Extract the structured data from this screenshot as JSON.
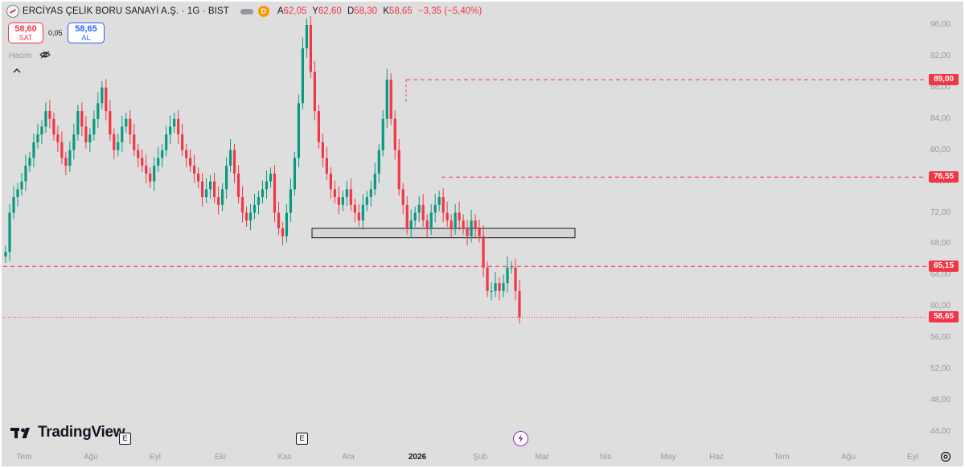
{
  "header": {
    "symbol_title": "ERCİYAS ÇELİK BORU SANAYİ A.Ş. · 1G · BIST",
    "badge_letter": "D",
    "ohlc": [
      {
        "label": "A",
        "value": "62,05"
      },
      {
        "label": "Y",
        "value": "62,60"
      },
      {
        "label": "D",
        "value": "58,30"
      },
      {
        "label": "K",
        "value": "58,65"
      }
    ],
    "change": "−3,35 (−5,40%)"
  },
  "trade": {
    "sell_price": "58,60",
    "sell_label": "SAT",
    "spread": "0,05",
    "buy_price": "58,65",
    "buy_label": "AL"
  },
  "indicator": {
    "volume_label": "Hacim"
  },
  "branding": {
    "logo_text": "TradingView"
  },
  "events": {
    "earnings_badge": "E"
  },
  "colors": {
    "up": "#089981",
    "down": "#f23645",
    "level_line": "#f23645",
    "zone_fill": "#d3d3d3",
    "zone_border": "#131722"
  },
  "icons": [
    "symbol-logo-icon",
    "eye-off-icon",
    "chevron-up-icon",
    "tradingview-logo-icon",
    "flash-icon",
    "settings-icon"
  ],
  "chart_data": {
    "type": "candlestick",
    "y_axis": {
      "ticks": [
        "96,00",
        "92,00",
        "88,00",
        "84,00",
        "80,00",
        "76,00",
        "72,00",
        "68,00",
        "64,00",
        "60,00",
        "56,00",
        "52,00",
        "48,00",
        "44,00"
      ],
      "range": [
        42.5,
        98.5
      ]
    },
    "x_axis": {
      "ticks": [
        "Tem",
        "Ağu",
        "Eyl",
        "Eki",
        "Kas",
        "Ara",
        "2026",
        "Şub",
        "Mar",
        "Nis",
        "May",
        "Haz",
        "Tem",
        "Ağu",
        "Eyl"
      ],
      "bold_tick": "2026"
    },
    "horizontal_levels": [
      {
        "value": 89.0,
        "label": "89,00"
      },
      {
        "value": 76.55,
        "label": "76,55"
      },
      {
        "value": 65.15,
        "label": "65,15"
      }
    ],
    "last_price": {
      "value": 58.65,
      "label": "58,65"
    },
    "support_zone": {
      "low": 68.8,
      "high": 70.0
    },
    "closes": [
      67,
      72,
      74,
      75,
      76,
      78,
      79,
      81,
      82,
      83,
      85,
      84,
      82,
      81,
      79,
      78,
      80,
      82,
      85,
      83,
      81,
      82,
      84,
      86,
      88,
      85,
      82,
      80,
      81,
      83,
      84,
      82,
      80,
      79,
      78,
      77,
      76,
      78,
      79,
      80,
      82,
      83,
      84,
      82,
      80,
      79,
      78,
      77,
      76,
      74,
      75,
      76,
      74,
      73,
      75,
      78,
      80,
      77,
      74,
      72,
      71,
      72,
      73,
      74,
      75,
      76,
      77,
      72,
      70,
      69,
      72,
      75,
      79,
      86,
      93,
      96,
      90,
      85,
      81,
      79,
      77,
      75,
      74,
      73,
      74,
      75,
      73,
      72,
      71,
      73,
      74,
      75,
      77,
      80,
      84,
      89,
      84,
      80,
      75,
      73,
      70,
      71,
      72,
      73,
      71,
      70,
      72,
      73,
      74,
      72,
      71,
      70,
      72,
      71,
      70,
      69,
      71,
      70,
      69,
      65,
      62,
      62,
      63,
      62,
      63,
      65,
      65,
      62,
      58.65
    ]
  }
}
